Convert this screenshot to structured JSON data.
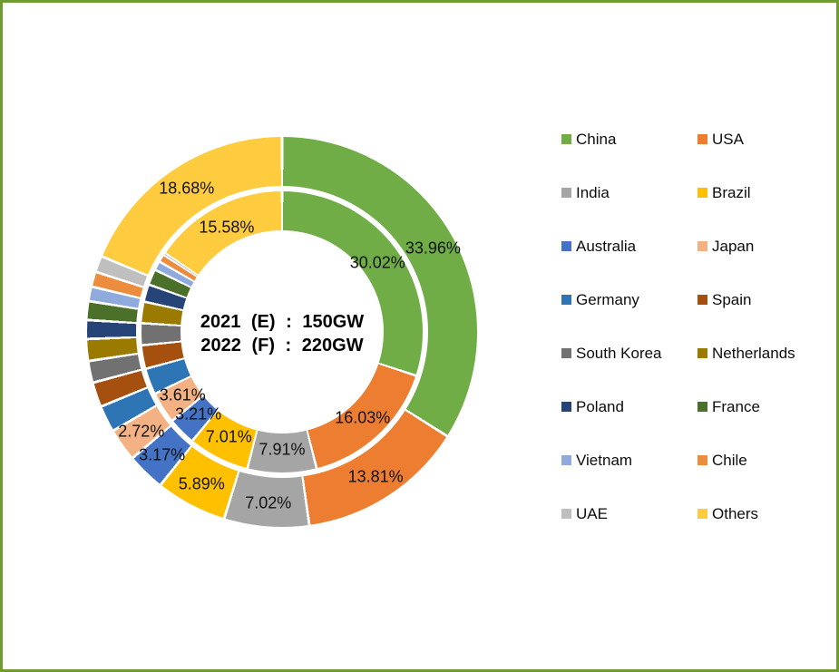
{
  "frame": {
    "border_color": "#6F9C31",
    "background": "#FFFFFF"
  },
  "chart_data": {
    "type": "donut",
    "rings": "double",
    "title": "",
    "legend_position": "right",
    "categories": [
      "China",
      "USA",
      "India",
      "Brazil",
      "Australia",
      "Japan",
      "Germany",
      "Spain",
      "South Korea",
      "Netherlands",
      "Poland",
      "France",
      "Vietnam",
      "Chile",
      "UAE",
      "Others"
    ],
    "colors": [
      "#70AD47",
      "#ED7D31",
      "#A5A5A5",
      "#FFC000",
      "#4472C4",
      "#F4B183",
      "#2E75B6",
      "#A5500F",
      "#717171",
      "#9A7B00",
      "#264478",
      "#4B7029",
      "#8FAADC",
      "#EC8C3F",
      "#BFBFBF",
      "#FFCC40"
    ],
    "series": [
      {
        "name": "2021 (E)",
        "ring": "inner",
        "total": "150GW",
        "values": [
          30.02,
          16.03,
          7.91,
          7.01,
          3.21,
          3.61,
          3.0,
          2.7,
          2.5,
          2.45,
          2.0,
          1.8,
          1.05,
          0.9,
          0.23,
          15.58
        ]
      },
      {
        "name": "2022 (F)",
        "ring": "outer",
        "total": "220GW",
        "values": [
          33.96,
          13.81,
          7.02,
          5.89,
          3.17,
          2.72,
          2.2,
          2.05,
          1.8,
          1.8,
          1.55,
          1.55,
          1.2,
          1.25,
          1.35,
          18.68
        ]
      }
    ],
    "labeled_categories": [
      "China",
      "USA",
      "India",
      "Brazil",
      "Australia",
      "Japan",
      "Others"
    ],
    "shown_labels": {
      "inner": [
        "30.02%",
        "16.03%",
        "7.91%",
        "7.01%",
        "3.21%",
        "3.61%",
        "15.58%"
      ],
      "outer": [
        "33.96%",
        "13.81%",
        "7.02%",
        "5.89%",
        "3.17%",
        "2.72%",
        "18.68%"
      ]
    },
    "center_lines": [
      "2021 (E) : 150GW",
      "2022 (F) : 220GW"
    ]
  }
}
